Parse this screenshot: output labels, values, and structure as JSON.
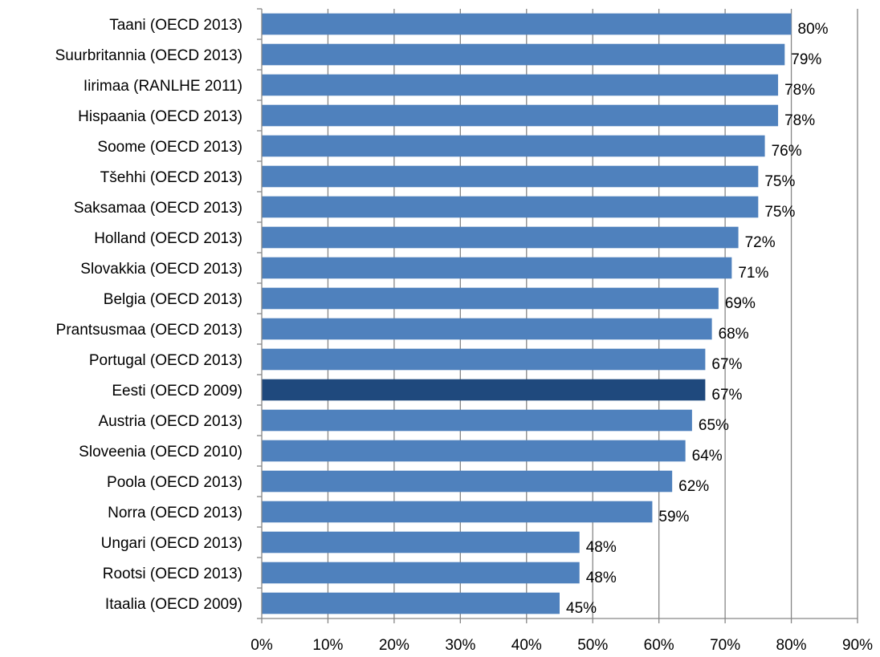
{
  "chart_data": {
    "type": "bar",
    "orientation": "horizontal",
    "categories": [
      "Taani (OECD 2013)",
      "Suurbritannia (OECD 2013)",
      "Iirimaa (RANLHE 2011)",
      "Hispaania (OECD 2013)",
      "Soome (OECD 2013)",
      "Tšehhi (OECD 2013)",
      "Saksamaa (OECD 2013)",
      "Holland (OECD 2013)",
      "Slovakkia (OECD 2013)",
      "Belgia (OECD 2013)",
      "Prantsusmaa (OECD 2013)",
      "Portugal (OECD 2013)",
      "Eesti (OECD 2009)",
      "Austria (OECD 2013)",
      "Sloveenia (OECD 2010)",
      "Poola (OECD 2013)",
      "Norra (OECD 2013)",
      "Ungari (OECD 2013)",
      "Rootsi (OECD 2013)",
      "Itaalia (OECD 2009)"
    ],
    "values": [
      80,
      79,
      78,
      78,
      76,
      75,
      75,
      72,
      71,
      69,
      68,
      67,
      67,
      65,
      64,
      62,
      59,
      48,
      48,
      45
    ],
    "data_labels": [
      "80%",
      "79%",
      "78%",
      "78%",
      "76%",
      "75%",
      "75%",
      "72%",
      "71%",
      "69%",
      "68%",
      "67%",
      "67%",
      "65%",
      "64%",
      "62%",
      "59%",
      "48%",
      "48%",
      "45%"
    ],
    "highlight_category": "Eesti (OECD 2009)",
    "xlim": [
      0,
      90
    ],
    "x_ticks": [
      0,
      10,
      20,
      30,
      40,
      50,
      60,
      70,
      80,
      90
    ],
    "x_tick_labels": [
      "0%",
      "10%",
      "20%",
      "30%",
      "40%",
      "50%",
      "60%",
      "70%",
      "80%",
      "90%"
    ],
    "grid": "vertical",
    "legend": "none",
    "colors": {
      "bar": "#4f81bd",
      "bar_highlight": "#1f497d",
      "grid": "#868686",
      "axis": "#868686"
    }
  }
}
